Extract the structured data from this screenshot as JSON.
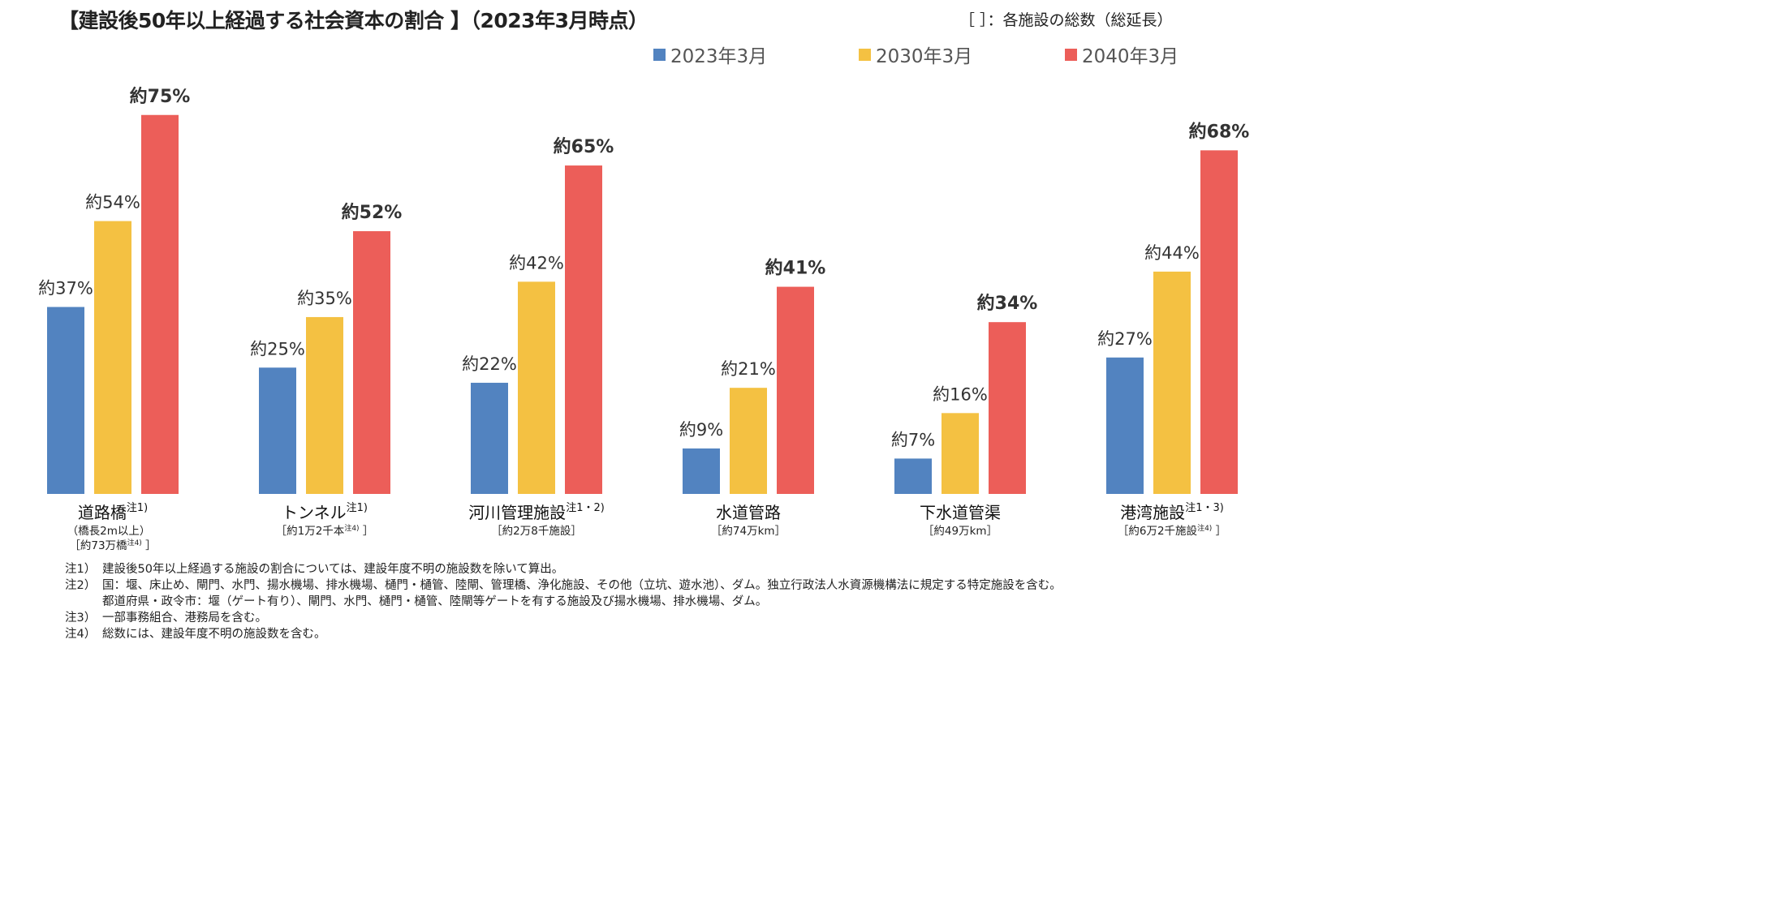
{
  "title": "【建設後50年以上経過する社会資本の割合 】（2023年3月時点）",
  "unit_note": "［ ］：各施設の総数（総延長）",
  "colors": {
    "2023": "#5283C0",
    "2030": "#F4C142",
    "2040": "#EC5E59",
    "text": "#333333"
  },
  "chart_data": {
    "type": "bar",
    "title": "【建設後50年以上経過する社会資本の割合 】（2023年3月時点）",
    "xlabel": "",
    "ylabel": "",
    "ylim": [
      0,
      80
    ],
    "grid": false,
    "legend_position": "top-right",
    "legend": [
      "2023年3月",
      "2030年3月",
      "2040年3月"
    ],
    "categories": [
      "道路橋",
      "トンネル",
      "河川管理施設",
      "水道管路",
      "下水道管渠",
      "港湾施設"
    ],
    "category_notes": [
      "注1)",
      "注1)",
      "注1・2)",
      "",
      "",
      "注1・3)"
    ],
    "category_sublabels": [
      [
        "（橋長2m以上）",
        "［約73万橋",
        "注4)",
        " ］"
      ],
      [
        "［約1万2千本",
        "注4)",
        " ］"
      ],
      [
        "［約2万8千施設］"
      ],
      [
        "［約74万km］"
      ],
      [
        "［約49万km］"
      ],
      [
        "［約6万2千施設",
        "注4)",
        " ］"
      ]
    ],
    "series": [
      {
        "name": "2023年3月",
        "values": [
          37,
          25,
          22,
          9,
          7,
          27
        ],
        "labels": [
          "約37%",
          "約25%",
          "約22%",
          "約9%",
          "約7%",
          "約27%"
        ]
      },
      {
        "name": "2030年3月",
        "values": [
          54,
          35,
          42,
          21,
          16,
          44
        ],
        "labels": [
          "約54%",
          "約35%",
          "約42%",
          "約21%",
          "約16%",
          "約44%"
        ]
      },
      {
        "name": "2040年3月",
        "values": [
          75,
          52,
          65,
          41,
          34,
          68
        ],
        "labels": [
          "約75%",
          "約52%",
          "約65%",
          "約41%",
          "約34%",
          "約68%"
        ]
      }
    ]
  },
  "notes": [
    {
      "key": "注1）",
      "text": "建設後50年以上経過する施設の割合については、建設年度不明の施設数を除いて算出。"
    },
    {
      "key": "注2）",
      "text": "国：堰、床止め、閘門、水門、揚水機場、排水機場、樋門・樋管、陸閘、管理橋、浄化施設、その他（立坑、遊水池）、ダム。独立行政法人水資源機構法に規定する特定施設を含む。"
    },
    {
      "key": "",
      "text": "都道府県・政令市：堰（ゲート有り）、閘門、水門、樋門・樋管、陸閘等ゲートを有する施設及び揚水機場、排水機場、ダム。"
    },
    {
      "key": "注3）",
      "text": "一部事務組合、港務局を含む。"
    },
    {
      "key": "注4）",
      "text": "総数には、建設年度不明の施設数を含む。"
    }
  ]
}
